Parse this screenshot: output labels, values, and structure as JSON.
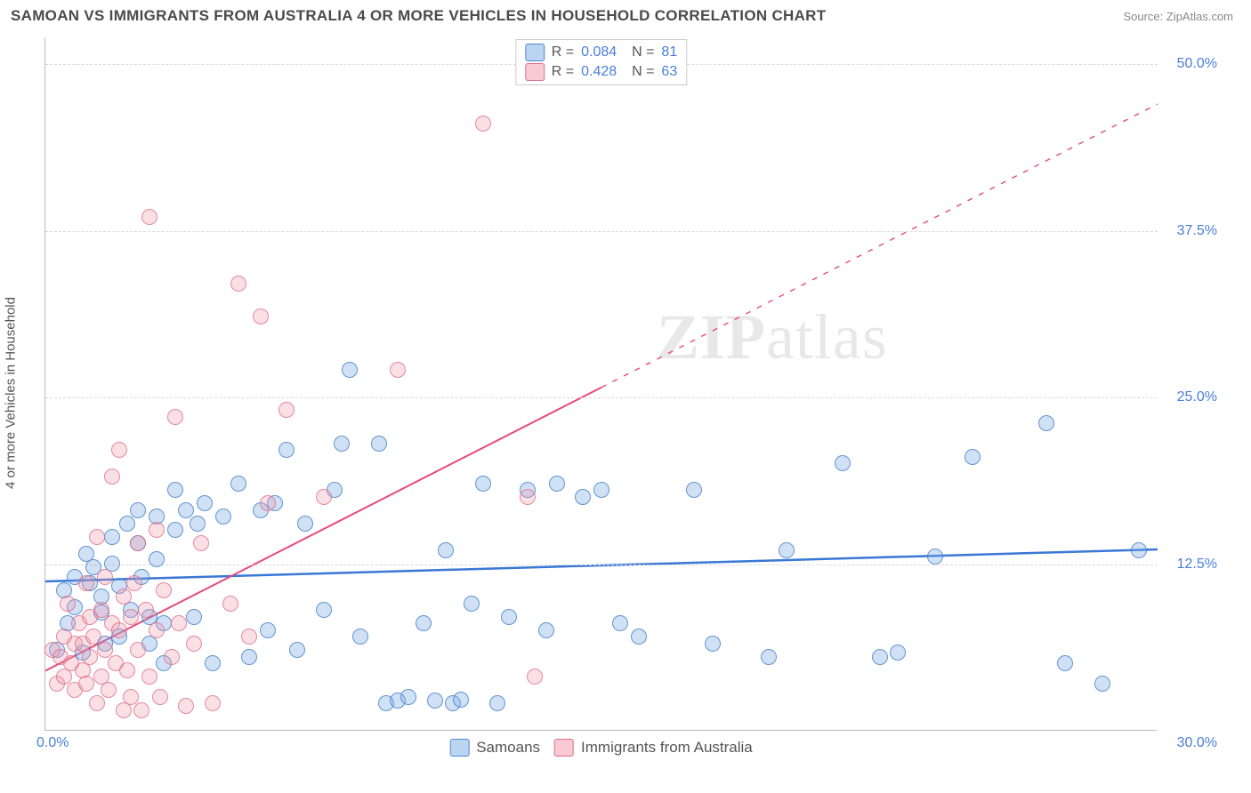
{
  "header": {
    "title": "SAMOAN VS IMMIGRANTS FROM AUSTRALIA 4 OR MORE VEHICLES IN HOUSEHOLD CORRELATION CHART",
    "source": "Source: ZipAtlas.com"
  },
  "chart": {
    "type": "scatter",
    "ylabel": "4 or more Vehicles in Household",
    "xlim": [
      0,
      30
    ],
    "ylim": [
      0,
      52
    ],
    "xtick_labels": [
      "0.0%",
      "30.0%"
    ],
    "ytick_positions": [
      12.5,
      25.0,
      37.5,
      50.0
    ],
    "ytick_labels": [
      "12.5%",
      "25.0%",
      "37.5%",
      "50.0%"
    ],
    "background_color": "#ffffff",
    "grid_color": "#d8d8d8",
    "axis_color": "#bbbbbb",
    "tick_label_color": "#4a7fd8",
    "watermark_text_bold": "ZIP",
    "watermark_text_light": "atlas",
    "series": [
      {
        "name": "Samoans",
        "color_fill": "rgba(120,170,230,0.35)",
        "color_stroke": "rgba(70,130,200,0.8)",
        "legend_key": "blue",
        "R": "0.084",
        "N": "81",
        "trend": {
          "x1": 0,
          "y1": 11.2,
          "x2": 30,
          "y2": 13.6,
          "color": "#3a77d6",
          "width": 2.5,
          "dash_from_x": null
        },
        "points": [
          [
            0.3,
            6.0
          ],
          [
            0.5,
            10.5
          ],
          [
            0.6,
            8.0
          ],
          [
            0.8,
            11.5
          ],
          [
            0.8,
            9.2
          ],
          [
            1.0,
            5.8
          ],
          [
            1.1,
            13.2
          ],
          [
            1.2,
            11.0
          ],
          [
            1.3,
            12.2
          ],
          [
            1.5,
            8.8
          ],
          [
            1.5,
            10.0
          ],
          [
            1.6,
            6.5
          ],
          [
            1.8,
            14.5
          ],
          [
            1.8,
            12.5
          ],
          [
            2.0,
            10.8
          ],
          [
            2.0,
            7.0
          ],
          [
            2.2,
            15.5
          ],
          [
            2.3,
            9.0
          ],
          [
            2.5,
            14.0
          ],
          [
            2.5,
            16.5
          ],
          [
            2.6,
            11.5
          ],
          [
            2.8,
            6.5
          ],
          [
            2.8,
            8.5
          ],
          [
            3.0,
            12.8
          ],
          [
            3.0,
            16.0
          ],
          [
            3.2,
            8.0
          ],
          [
            3.2,
            5.0
          ],
          [
            3.5,
            15.0
          ],
          [
            3.5,
            18.0
          ],
          [
            3.8,
            16.5
          ],
          [
            4.0,
            8.5
          ],
          [
            4.1,
            15.5
          ],
          [
            4.3,
            17.0
          ],
          [
            4.5,
            5.0
          ],
          [
            4.8,
            16.0
          ],
          [
            5.2,
            18.5
          ],
          [
            5.5,
            5.5
          ],
          [
            5.8,
            16.5
          ],
          [
            6.0,
            7.5
          ],
          [
            6.2,
            17.0
          ],
          [
            6.5,
            21.0
          ],
          [
            6.8,
            6.0
          ],
          [
            7.0,
            15.5
          ],
          [
            7.5,
            9.0
          ],
          [
            7.8,
            18.0
          ],
          [
            8.0,
            21.5
          ],
          [
            8.2,
            27.0
          ],
          [
            8.5,
            7.0
          ],
          [
            9.0,
            21.5
          ],
          [
            9.2,
            2.0
          ],
          [
            9.5,
            2.2
          ],
          [
            9.8,
            2.5
          ],
          [
            10.2,
            8.0
          ],
          [
            10.5,
            2.2
          ],
          [
            10.8,
            13.5
          ],
          [
            11.0,
            2.0
          ],
          [
            11.2,
            2.3
          ],
          [
            11.5,
            9.5
          ],
          [
            11.8,
            18.5
          ],
          [
            12.2,
            2.0
          ],
          [
            12.5,
            8.5
          ],
          [
            13.0,
            18.0
          ],
          [
            13.5,
            7.5
          ],
          [
            13.8,
            18.5
          ],
          [
            14.5,
            17.5
          ],
          [
            15.0,
            18.0
          ],
          [
            15.5,
            8.0
          ],
          [
            16.0,
            7.0
          ],
          [
            17.5,
            18.0
          ],
          [
            18.0,
            6.5
          ],
          [
            19.5,
            5.5
          ],
          [
            20.0,
            13.5
          ],
          [
            21.5,
            20.0
          ],
          [
            22.5,
            5.5
          ],
          [
            23.0,
            5.8
          ],
          [
            24.0,
            13.0
          ],
          [
            25.0,
            20.5
          ],
          [
            27.0,
            23.0
          ],
          [
            27.5,
            5.0
          ],
          [
            28.5,
            3.5
          ],
          [
            29.5,
            13.5
          ]
        ]
      },
      {
        "name": "Immigrants from Australia",
        "color_fill": "rgba(240,150,170,0.30)",
        "color_stroke": "rgba(220,100,130,0.7)",
        "legend_key": "pink",
        "R": "0.428",
        "N": "63",
        "trend": {
          "x1": 0,
          "y1": 4.5,
          "x2": 30,
          "y2": 47.0,
          "color": "#e84a7a",
          "width": 2,
          "dash_from_x": 15
        },
        "points": [
          [
            0.2,
            6.0
          ],
          [
            0.3,
            3.5
          ],
          [
            0.4,
            5.5
          ],
          [
            0.5,
            7.0
          ],
          [
            0.5,
            4.0
          ],
          [
            0.6,
            9.5
          ],
          [
            0.7,
            5.0
          ],
          [
            0.8,
            6.5
          ],
          [
            0.8,
            3.0
          ],
          [
            0.9,
            8.0
          ],
          [
            1.0,
            4.5
          ],
          [
            1.0,
            6.5
          ],
          [
            1.1,
            3.5
          ],
          [
            1.1,
            11.0
          ],
          [
            1.2,
            5.5
          ],
          [
            1.2,
            8.5
          ],
          [
            1.3,
            7.0
          ],
          [
            1.4,
            2.0
          ],
          [
            1.4,
            14.5
          ],
          [
            1.5,
            9.0
          ],
          [
            1.5,
            4.0
          ],
          [
            1.6,
            6.0
          ],
          [
            1.6,
            11.5
          ],
          [
            1.7,
            3.0
          ],
          [
            1.8,
            8.0
          ],
          [
            1.8,
            19.0
          ],
          [
            1.9,
            5.0
          ],
          [
            2.0,
            21.0
          ],
          [
            2.0,
            7.5
          ],
          [
            2.1,
            1.5
          ],
          [
            2.1,
            10.0
          ],
          [
            2.2,
            4.5
          ],
          [
            2.3,
            8.5
          ],
          [
            2.3,
            2.5
          ],
          [
            2.4,
            11.0
          ],
          [
            2.5,
            14.0
          ],
          [
            2.5,
            6.0
          ],
          [
            2.6,
            1.5
          ],
          [
            2.7,
            9.0
          ],
          [
            2.8,
            4.0
          ],
          [
            2.8,
            38.5
          ],
          [
            3.0,
            7.5
          ],
          [
            3.0,
            15.0
          ],
          [
            3.1,
            2.5
          ],
          [
            3.2,
            10.5
          ],
          [
            3.4,
            5.5
          ],
          [
            3.5,
            23.5
          ],
          [
            3.6,
            8.0
          ],
          [
            3.8,
            1.8
          ],
          [
            4.0,
            6.5
          ],
          [
            4.2,
            14.0
          ],
          [
            4.5,
            2.0
          ],
          [
            5.0,
            9.5
          ],
          [
            5.2,
            33.5
          ],
          [
            5.5,
            7.0
          ],
          [
            5.8,
            31.0
          ],
          [
            6.0,
            17.0
          ],
          [
            6.5,
            24.0
          ],
          [
            7.5,
            17.5
          ],
          [
            9.5,
            27.0
          ],
          [
            11.8,
            45.5
          ],
          [
            13.0,
            17.5
          ],
          [
            13.2,
            4.0
          ]
        ]
      }
    ],
    "legend_bottom": [
      {
        "key": "blue",
        "label": "Samoans"
      },
      {
        "key": "pink",
        "label": "Immigrants from Australia"
      }
    ]
  }
}
